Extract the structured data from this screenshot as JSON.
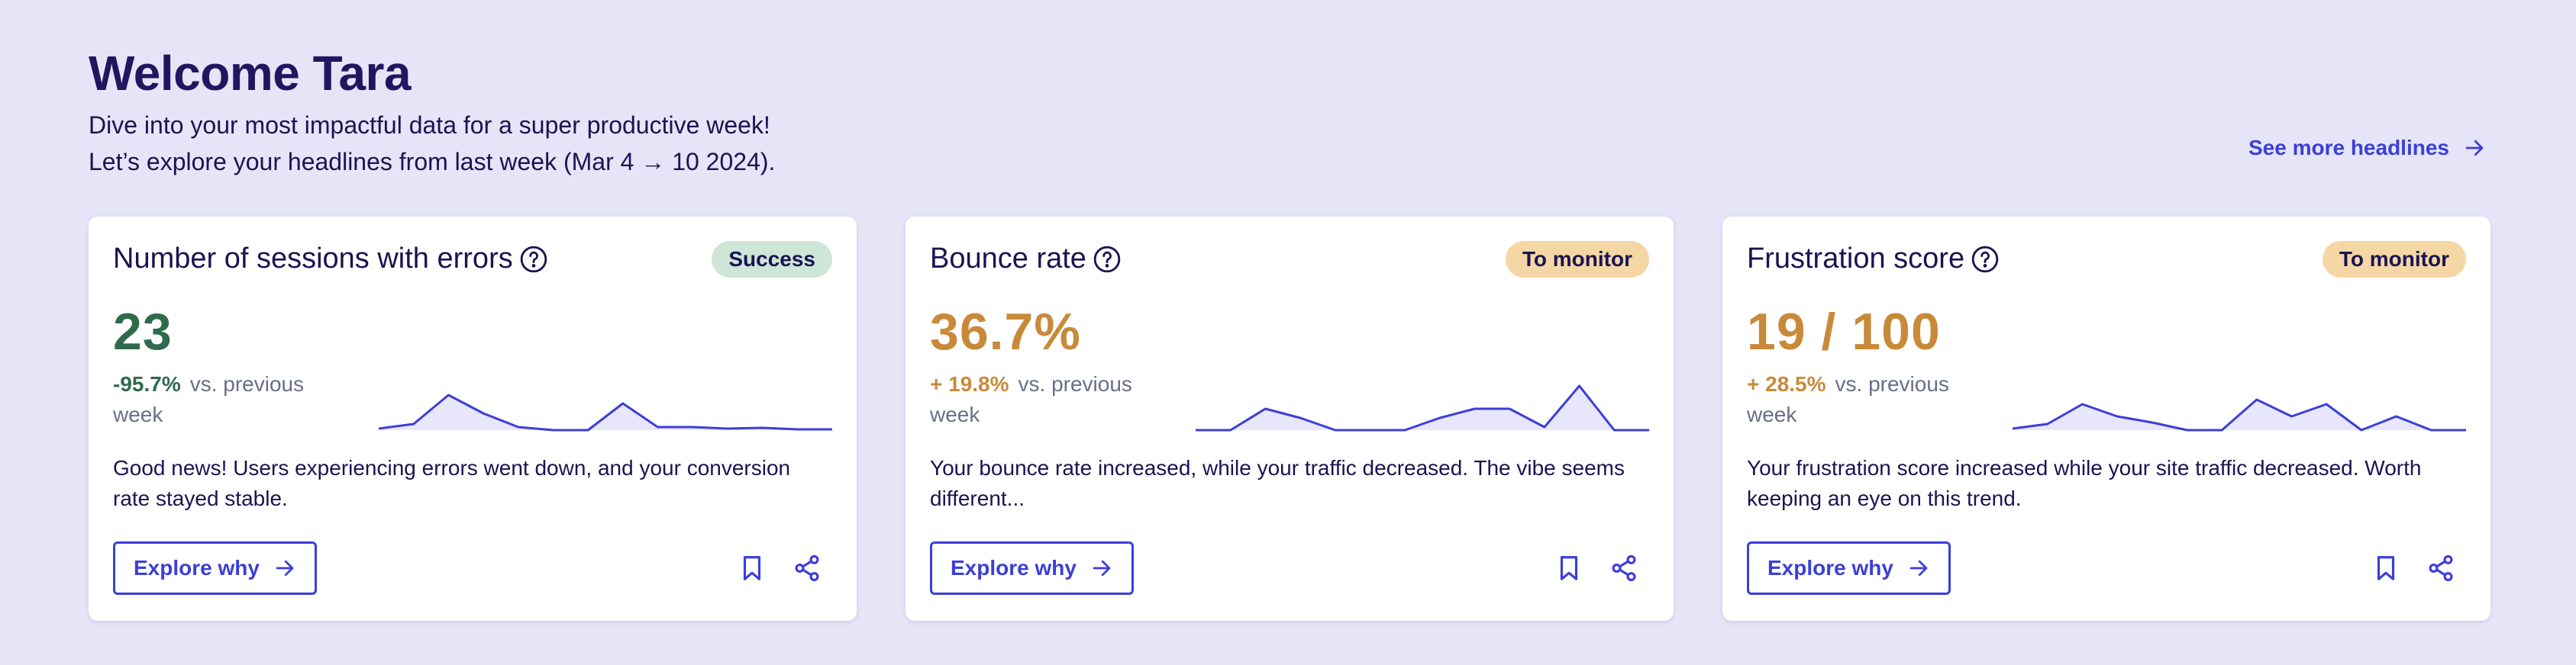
{
  "header": {
    "title": "Welcome Tara",
    "line1": "Dive into your most impactful data for a super productive week!",
    "line2": "Let’s explore your headlines from last week (Mar 4 → 10 2024)."
  },
  "see_more_label": "See more headlines",
  "colors": {
    "accent": "#3b3fd8",
    "success_text": "#2f6a4c",
    "success_badge": "#cde6d8",
    "monitor_text": "#c88a3a",
    "monitor_badge": "#f5d7a5",
    "spark_fill": "#e8e6fa"
  },
  "cards": [
    {
      "title": "Number of sessions with errors",
      "badge": "Success",
      "metric": "23",
      "delta_pct": "-95.7%",
      "delta_text": "vs. previous week",
      "description": "Good news! Users experiencing errors went down, and your conversion rate stayed stable.",
      "cta": "Explore why",
      "spark": [
        2,
        8,
        46,
        22,
        4,
        0,
        0,
        35,
        4,
        4,
        2,
        3,
        1,
        1
      ]
    },
    {
      "title": "Bounce rate",
      "badge": "To monitor",
      "metric": "36.7%",
      "delta_pct": "+ 19.8%",
      "delta_text": "vs. previous week",
      "description": "Your bounce rate increased, while your traffic decreased. The vibe seems different...",
      "cta": "Explore why",
      "spark": [
        0,
        0,
        28,
        16,
        0,
        0,
        0,
        16,
        28,
        28,
        4,
        58,
        0,
        0
      ]
    },
    {
      "title": "Frustration score",
      "badge": "To monitor",
      "metric": "19 / 100",
      "delta_pct": "+ 28.5%",
      "delta_text": "vs. previous week",
      "description": "Your frustration score increased while your site traffic decreased. Worth keeping an eye on this trend.",
      "cta": "Explore why",
      "spark": [
        2,
        8,
        34,
        18,
        10,
        0,
        0,
        40,
        18,
        34,
        0,
        18,
        0,
        0
      ]
    }
  ]
}
